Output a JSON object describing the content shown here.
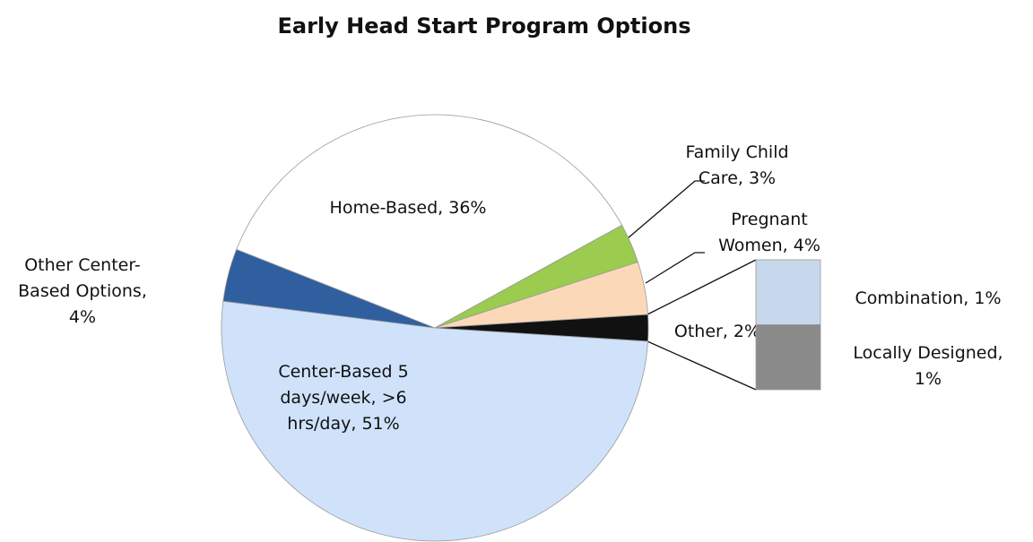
{
  "chart_data": {
    "type": "pie-of-bar",
    "title": "Early Head Start Program Options",
    "pie": {
      "labels": [
        "Center-Based 5 days/week, >6 hrs/day, 51%",
        "Other Center-Based Options, 4%",
        "Home-Based, 36%",
        "Family Child Care, 3%",
        "Pregnant Women, 4%",
        "Other, 2%"
      ],
      "values": [
        51,
        4,
        36,
        3,
        4,
        2
      ],
      "colors": [
        "#cfe2fa",
        "#2f5f9e",
        "#ffffff",
        "#9bcb4f",
        "#fbd9b8",
        "#111111"
      ]
    },
    "bar": {
      "labels": [
        "Combination, 1%",
        "Locally Designed, 1%"
      ],
      "values": [
        1,
        1
      ],
      "colors": [
        "#c8d8ec",
        "#8a8a8a"
      ]
    }
  }
}
